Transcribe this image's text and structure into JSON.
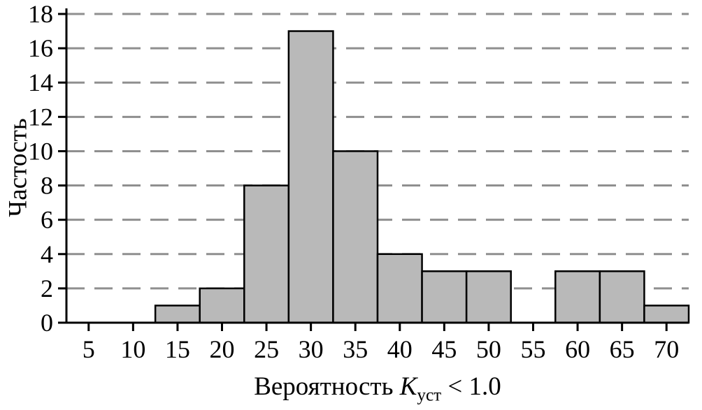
{
  "chart_data": {
    "type": "bar",
    "title": "",
    "ylabel": "Частость",
    "xlabel": "Вероятность Kуст < 1.0",
    "xlabel_parts": {
      "prefix": "Вероятность ",
      "symbol": "K",
      "subscript": "уст",
      "suffix": " < 1.0"
    },
    "bin_centers": [
      15,
      20,
      25,
      30,
      35,
      40,
      45,
      50,
      60,
      65,
      70
    ],
    "values": [
      1,
      2,
      8,
      17,
      10,
      4,
      3,
      3,
      3,
      3,
      1
    ],
    "bin_width": 5,
    "x_ticks": [
      5,
      10,
      15,
      20,
      25,
      30,
      35,
      40,
      45,
      50,
      55,
      60,
      65,
      70
    ],
    "y_ticks": [
      0,
      2,
      4,
      6,
      8,
      10,
      12,
      14,
      16,
      18
    ],
    "xlim": [
      2.5,
      72.5
    ],
    "ylim": [
      0,
      18
    ],
    "grid": "horizontal-dashed",
    "legend": "none",
    "colors": {
      "bar_fill": "#b9b9b9",
      "bar_stroke": "#000000",
      "grid": "#8f8f8f",
      "axis": "#000000",
      "text": "#000000",
      "background": "#ffffff"
    }
  }
}
